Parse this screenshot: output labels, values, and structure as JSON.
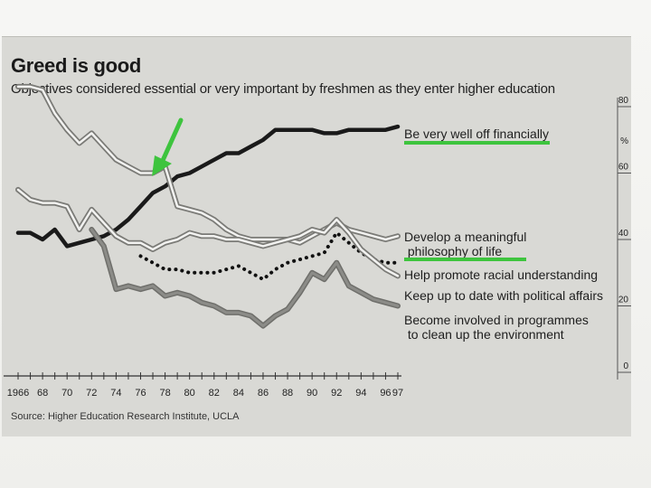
{
  "colors": {
    "panel": "#d9d9d5",
    "wealth_line": "#1a1a1a",
    "meaning_line": "#f2f2f0",
    "politics_line": "#f2f2f0",
    "environment_line": "#8c8c88",
    "racial_dots": "#111111",
    "annotation_green": "#3ec43e"
  },
  "title": "Greed is good",
  "subtitle": "Objectives considered essential or very important by freshmen as they enter higher education",
  "source": "Source: Higher Education Research Institute, UCLA",
  "chart_data": {
    "type": "line",
    "title": "Greed is good",
    "subtitle": "Objectives considered essential or very important by freshmen as they enter higher education",
    "x": [
      1966,
      1967,
      1968,
      1969,
      1970,
      1971,
      1972,
      1973,
      1974,
      1975,
      1976,
      1977,
      1978,
      1979,
      1980,
      1981,
      1982,
      1983,
      1984,
      1985,
      1986,
      1987,
      1988,
      1989,
      1990,
      1991,
      1992,
      1993,
      1994,
      1995,
      1996,
      1997
    ],
    "x_tick_labels": [
      "1966",
      "68",
      "70",
      "72",
      "74",
      "76",
      "78",
      "80",
      "82",
      "84",
      "86",
      "88",
      "90",
      "92",
      "94",
      "96",
      "97"
    ],
    "x_tick_years": [
      1966,
      1968,
      1970,
      1972,
      1974,
      1976,
      1978,
      1980,
      1982,
      1984,
      1986,
      1988,
      1990,
      1992,
      1994,
      1996,
      1997
    ],
    "ylim": [
      0,
      80
    ],
    "y_ticks": [
      0,
      20,
      40,
      60,
      80
    ],
    "y_ticks_labeled": [
      "0",
      "20",
      "40",
      "60",
      "80"
    ],
    "y_unit": "%",
    "series": [
      {
        "name": "Be very well off financially",
        "label_lines": [
          "Be very well off financially"
        ],
        "style": "thick-dark",
        "values": [
          42,
          42,
          40,
          43,
          38,
          39,
          40,
          41,
          43,
          46,
          50,
          54,
          56,
          59,
          60,
          62,
          64,
          66,
          66,
          68,
          70,
          73,
          73,
          73,
          73,
          72,
          72,
          73,
          73,
          73,
          73,
          74
        ]
      },
      {
        "name": "Develop a meaningful philosophy of life",
        "label_lines": [
          "Develop a meaningful",
          " philosophy of life"
        ],
        "style": "light-band",
        "values": [
          86,
          86,
          85,
          78,
          73,
          69,
          72,
          68,
          64,
          62,
          60,
          60,
          62,
          50,
          49,
          48,
          46,
          43,
          41,
          40,
          40,
          40,
          40,
          39,
          41,
          43,
          45,
          43,
          42,
          41,
          40,
          41
        ]
      },
      {
        "name": "Help promote racial understanding",
        "label_lines": [
          "Help promote racial understanding"
        ],
        "style": "dotted",
        "values": [
          null,
          null,
          null,
          null,
          null,
          null,
          null,
          null,
          null,
          null,
          35,
          33,
          31,
          31,
          30,
          30,
          30,
          31,
          32,
          30,
          28,
          31,
          33,
          34,
          35,
          36,
          42,
          39,
          36,
          34,
          33,
          33
        ]
      },
      {
        "name": "Keep up to date with political affairs",
        "label_lines": [
          "Keep up to date with political affairs"
        ],
        "style": "light-band",
        "values": [
          55,
          52,
          51,
          51,
          50,
          43,
          49,
          45,
          41,
          39,
          39,
          37,
          39,
          40,
          42,
          41,
          41,
          40,
          40,
          39,
          38,
          39,
          40,
          41,
          43,
          42,
          46,
          42,
          37,
          34,
          31,
          29
        ]
      },
      {
        "name": "Become involved in programmes to clean up the environment",
        "label_lines": [
          "Become involved in programmes",
          "  to clean up the environment"
        ],
        "style": "mid-grey",
        "values": [
          null,
          null,
          null,
          null,
          null,
          null,
          43,
          38,
          25,
          26,
          25,
          26,
          23,
          24,
          23,
          21,
          20,
          18,
          18,
          17,
          14,
          17,
          19,
          24,
          30,
          28,
          33,
          26,
          24,
          22,
          21,
          20
        ]
      }
    ]
  }
}
